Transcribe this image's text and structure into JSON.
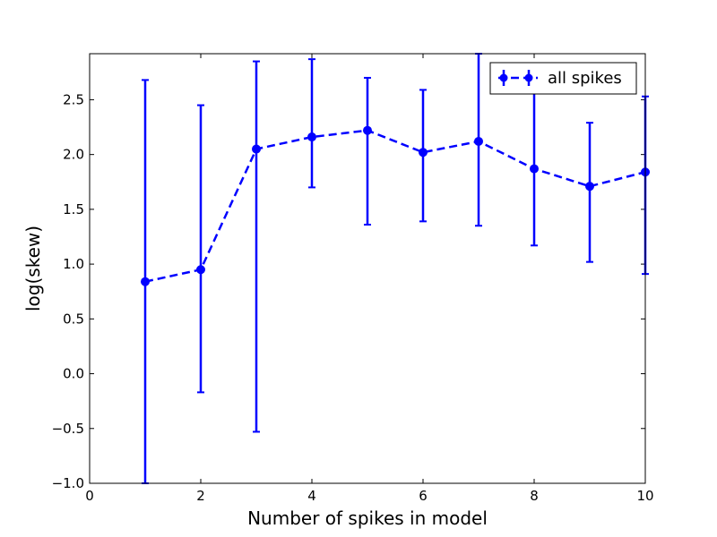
{
  "chart_data": {
    "type": "line",
    "xlabel": "Number of spikes in model",
    "ylabel": "log(skew)",
    "xlim": [
      0,
      10
    ],
    "ylim": [
      -1.0,
      2.92
    ],
    "x_ticks": [
      0,
      2,
      4,
      6,
      8,
      10
    ],
    "x_tick_labels": [
      "0",
      "2",
      "4",
      "6",
      "8",
      "10"
    ],
    "y_ticks": [
      -1.0,
      -0.5,
      0.0,
      0.5,
      1.0,
      1.5,
      2.0,
      2.5
    ],
    "y_tick_labels": [
      "−1.0",
      "−0.5",
      "0.0",
      "0.5",
      "1.0",
      "1.5",
      "2.0",
      "2.5"
    ],
    "grid": false,
    "legend_position": "top-right",
    "series": [
      {
        "name": "all spikes",
        "color": "#0000ff",
        "line_style": "dashed",
        "marker": "circle",
        "x": [
          1,
          2,
          3,
          4,
          5,
          6,
          7,
          8,
          9,
          10
        ],
        "y": [
          0.84,
          0.95,
          2.05,
          2.16,
          2.22,
          2.02,
          2.12,
          1.87,
          1.71,
          1.84
        ],
        "y_err_low": [
          -1.0,
          -0.17,
          -0.53,
          1.7,
          1.36,
          1.39,
          1.35,
          1.17,
          1.02,
          0.91
        ],
        "y_err_high": [
          2.68,
          2.45,
          2.85,
          2.87,
          2.7,
          2.59,
          2.92,
          2.8,
          2.29,
          2.53
        ]
      }
    ]
  }
}
